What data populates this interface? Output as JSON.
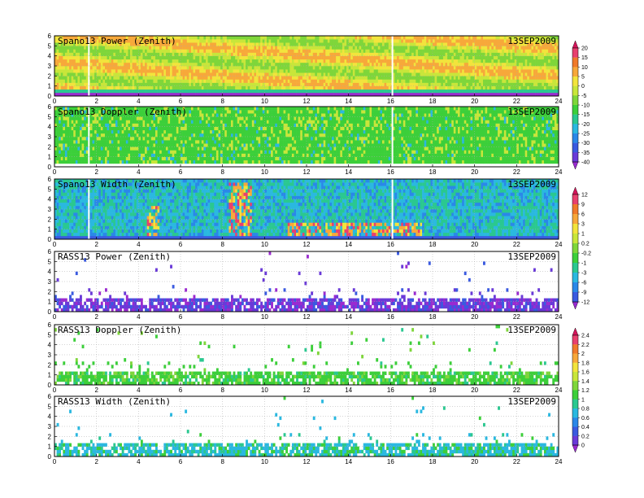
{
  "date": "13SEP2009",
  "chart_data": {
    "type": "heatmap",
    "x_range": [
      0,
      24
    ],
    "y_range": [
      0,
      6
    ],
    "x_ticks": [
      "0",
      "2",
      "4",
      "6",
      "8",
      "10",
      "12",
      "14",
      "16",
      "18",
      "20",
      "22",
      "24"
    ],
    "y_ticks": [
      "0",
      "1",
      "2",
      "3",
      "4",
      "5",
      "6"
    ],
    "grid": true,
    "panels": [
      {
        "title": "Spano13 Power (Zenith)",
        "colorbar": 0
      },
      {
        "title": "Spano13 Doppler (Zenith)",
        "colorbar": 0
      },
      {
        "title": "Spano13 Width (Zenith)",
        "colorbar": 1
      },
      {
        "title": "RASS13 Power (Zenith)",
        "colorbar": 1
      },
      {
        "title": "RASS13 Doppler (Zenith)",
        "colorbar": 2
      },
      {
        "title": "RASS13 Width (Zenith)",
        "colorbar": 2
      }
    ],
    "colorbars": [
      {
        "labels": [
          "20",
          "15",
          "10",
          "5",
          "0",
          "-5",
          "-10",
          "-15",
          "-20",
          "-25",
          "-30",
          "-35",
          "-40"
        ],
        "colors": [
          "#d4145a",
          "#e8406e",
          "#f07a2a",
          "#f7a83a",
          "#f2e43c",
          "#c8e63a",
          "#7ed63a",
          "#3ccf3a",
          "#2ac890",
          "#2ab8e0",
          "#2a88e8",
          "#3a5ae0",
          "#6a3ad8",
          "#9a2ad0"
        ]
      },
      {
        "labels": [
          "12",
          "9",
          "6",
          "3",
          "1",
          "0.2",
          "-0.2",
          "-1",
          "-3",
          "-6",
          "-9",
          "-12"
        ],
        "colors": [
          "#d4145a",
          "#e8406e",
          "#f07a2a",
          "#f7a83a",
          "#f2e43c",
          "#c8e63a",
          "#7ed63a",
          "#3ccf3a",
          "#2ac890",
          "#2ab8e0",
          "#2a88e8",
          "#3a5ae0",
          "#9a2ad0"
        ]
      },
      {
        "labels": [
          "2.4",
          "2.2",
          "2",
          "1.8",
          "1.6",
          "1.4",
          "1.2",
          "1",
          "0.8",
          "0.6",
          "0.4",
          "0.2",
          "0"
        ],
        "colors": [
          "#d4145a",
          "#e8406e",
          "#f07a2a",
          "#f7a83a",
          "#f2e43c",
          "#c8e63a",
          "#7ed63a",
          "#3ccf3a",
          "#2ac890",
          "#2ab8e0",
          "#2a88e8",
          "#3a5ae0",
          "#6a3ad8",
          "#9a2ad0"
        ]
      }
    ]
  }
}
